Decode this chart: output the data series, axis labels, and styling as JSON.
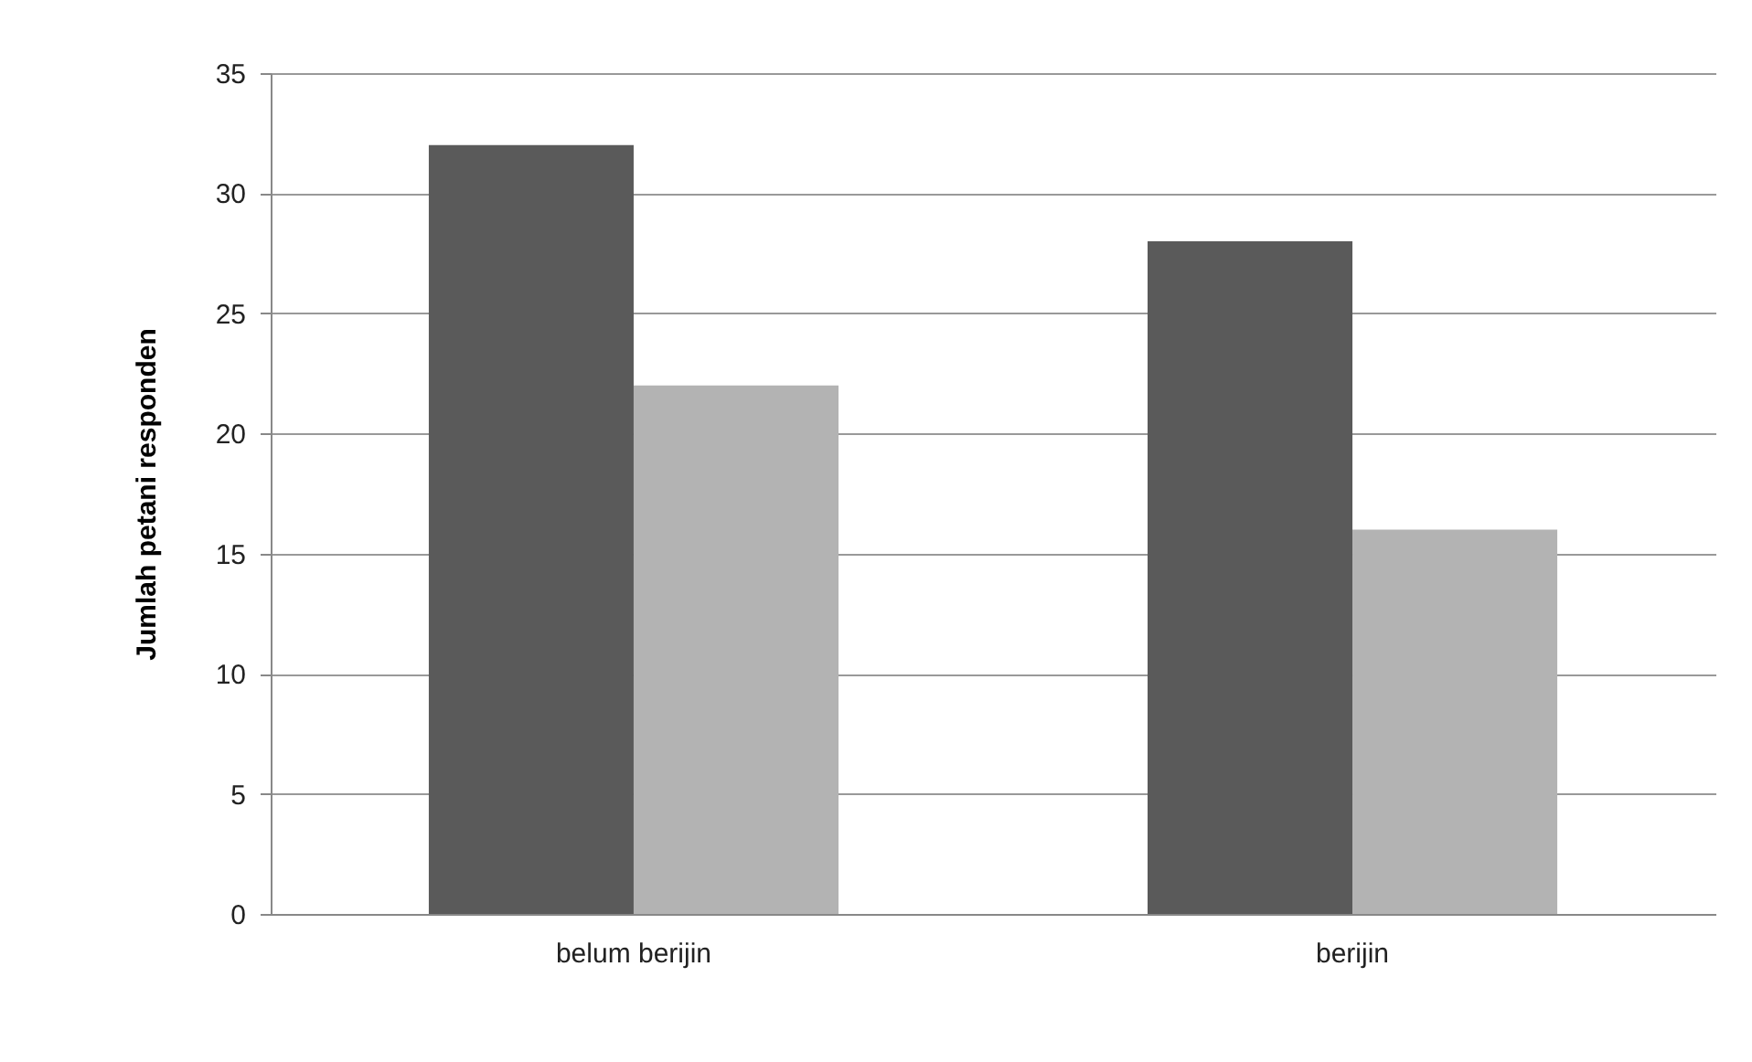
{
  "chart_data": {
    "type": "bar",
    "ylabel": "Jumlah petani responden",
    "categories": [
      "belum berijin",
      "berijin"
    ],
    "series": [
      {
        "color": "#5a5a5a",
        "values": [
          32,
          28
        ]
      },
      {
        "color": "#b3b3b3",
        "values": [
          22,
          16
        ]
      }
    ],
    "ylim": [
      0,
      35
    ],
    "yticks": [
      0,
      5,
      10,
      15,
      20,
      25,
      30,
      35
    ],
    "grid": "y"
  }
}
